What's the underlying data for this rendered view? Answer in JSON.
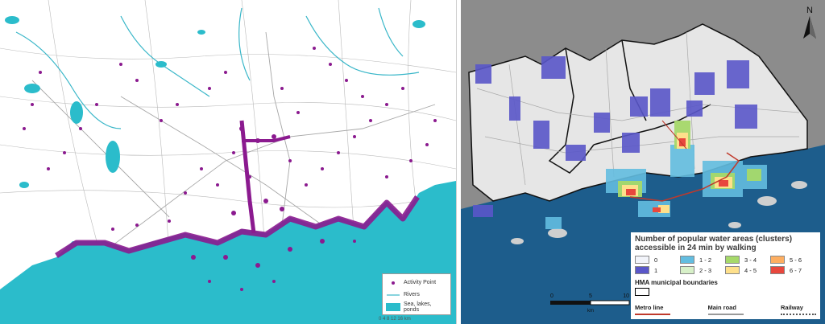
{
  "left_map": {
    "legend": {
      "activity_point": "Activity Point",
      "rivers": "Rivers",
      "water": "Sea, lakes, ponds"
    },
    "scale_text": "0   4   8   12   16 km"
  },
  "right_map": {
    "north_label": "N",
    "legend_title_line1": "Number of popular water areas (clusters)",
    "legend_title_line2": "accessible in 24 min by walking",
    "classes": [
      {
        "label": "0",
        "color": "#f2f4fa"
      },
      {
        "label": "1 - 2",
        "color": "#63bde0"
      },
      {
        "label": "3 - 4",
        "color": "#a6d96a"
      },
      {
        "label": "5 - 6",
        "color": "#fdae61"
      },
      {
        "label": "1",
        "color": "#5a57c9"
      },
      {
        "label": "2 - 3",
        "color": "#d7f0c8"
      },
      {
        "label": "4 - 5",
        "color": "#fee08b"
      },
      {
        "label": "6 - 7",
        "color": "#e8473d"
      }
    ],
    "boundary_label": "HMA municipal boundaries",
    "metro_label": "Metro line",
    "main_road_label": "Main road",
    "railway_label": "Railway",
    "scale": {
      "ticks": [
        "0",
        "5",
        "10"
      ],
      "unit": "km"
    },
    "colors": {
      "sea": "#1d5d8c",
      "land": "#e6e6e6",
      "outside": "#8c8c8c",
      "metro": "#c0392b"
    }
  }
}
